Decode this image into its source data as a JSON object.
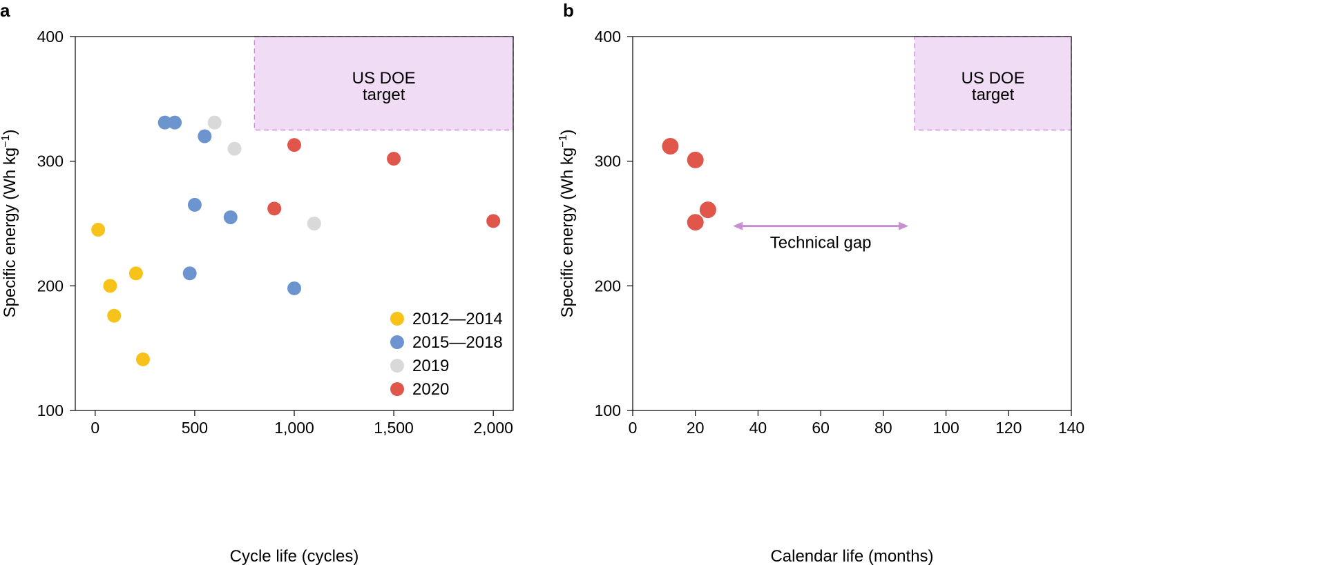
{
  "chart_data": [
    {
      "type": "scatter",
      "panel": "a",
      "xlabel": "Cycle life (cycles)",
      "ylabel": "Specific energy (Wh kg",
      "ylabel_sup": "−1",
      "ylabel_close": ")",
      "xlim": [
        -100,
        2100
      ],
      "ylim": [
        100,
        400
      ],
      "xticks": [
        0,
        500,
        1000,
        1500,
        2000
      ],
      "xtick_labels": [
        "0",
        "500",
        "1,000",
        "1,500",
        "2,000"
      ],
      "yticks": [
        100,
        200,
        300,
        400
      ],
      "ytick_labels": [
        "100",
        "200",
        "300",
        "400"
      ],
      "grid": false,
      "legend_position": "bottom-right",
      "region": {
        "label_line1": "US DOE",
        "label_line2": "target",
        "x": [
          800,
          2100
        ],
        "y": [
          325,
          400
        ],
        "color": "#f0dcf5",
        "border": "#c58fd1"
      },
      "series": [
        {
          "name": "2012—2014",
          "color": "#f7c21a",
          "points": [
            [
              15,
              245
            ],
            [
              75,
              200
            ],
            [
              95,
              176
            ],
            [
              205,
              210
            ],
            [
              240,
              141
            ]
          ]
        },
        {
          "name": "2015—2018",
          "color": "#6c94cf",
          "points": [
            [
              350,
              331
            ],
            [
              400,
              331
            ],
            [
              550,
              320
            ],
            [
              500,
              265
            ],
            [
              680,
              255
            ],
            [
              475,
              210
            ],
            [
              1000,
              198
            ]
          ]
        },
        {
          "name": "2019",
          "color": "#d9d9d9",
          "points": [
            [
              600,
              331
            ],
            [
              700,
              310
            ],
            [
              1100,
              250
            ]
          ]
        },
        {
          "name": "2020",
          "color": "#e0564a",
          "points": [
            [
              1000,
              313
            ],
            [
              900,
              262
            ],
            [
              1500,
              302
            ],
            [
              2000,
              252
            ]
          ]
        }
      ]
    },
    {
      "type": "scatter",
      "panel": "b",
      "xlabel": "Calendar life (months)",
      "ylabel": "Specific energy (Wh kg",
      "ylabel_sup": "−1",
      "ylabel_close": ")",
      "xlim": [
        0,
        140
      ],
      "ylim": [
        100,
        400
      ],
      "xticks": [
        0,
        20,
        40,
        60,
        80,
        100,
        120,
        140
      ],
      "xtick_labels": [
        "0",
        "20",
        "40",
        "60",
        "80",
        "100",
        "120",
        "140"
      ],
      "yticks": [
        100,
        200,
        300,
        400
      ],
      "ytick_labels": [
        "100",
        "200",
        "300",
        "400"
      ],
      "grid": false,
      "region": {
        "label_line1": "US DOE",
        "label_line2": "target",
        "x": [
          90,
          140
        ],
        "y": [
          325,
          400
        ],
        "color": "#f0dcf5",
        "border": "#c58fd1"
      },
      "annotation": {
        "text": "Technical gap",
        "arrow_x": [
          32,
          88
        ],
        "arrow_y": 248,
        "color": "#c58fd1"
      },
      "series": [
        {
          "name": "2020",
          "color": "#e0564a",
          "points": [
            [
              12,
              312
            ],
            [
              20,
              301
            ],
            [
              24,
              261
            ],
            [
              20,
              251
            ]
          ]
        }
      ]
    }
  ]
}
